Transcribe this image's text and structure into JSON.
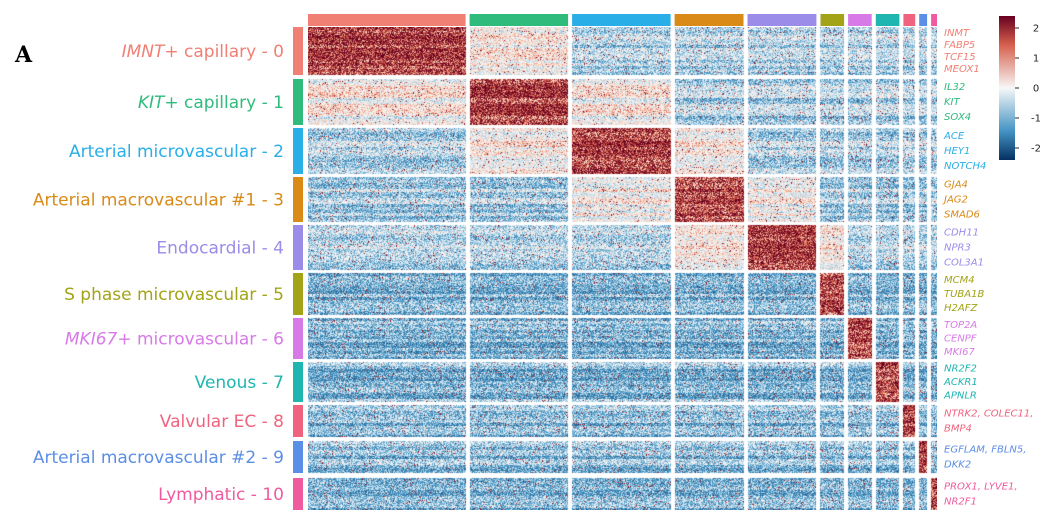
{
  "panel_label": "A",
  "chart_data": {
    "type": "heatmap",
    "clusters": [
      {
        "name_italic": "IMNT",
        "name_rest": "+ capillary",
        "index": "0",
        "color": "#f07f74",
        "genes": [
          "INMT",
          "FABP5",
          "TCF15",
          "MEOX1"
        ]
      },
      {
        "name_italic": "KIT",
        "name_rest": "+ capillary",
        "index": "1",
        "color": "#2fbb7c",
        "genes": [
          "IL32",
          "KIT",
          "SOX4"
        ]
      },
      {
        "name_italic": "",
        "name_rest": "Arterial microvascular",
        "index": "2",
        "color": "#2aaee7",
        "genes": [
          "ACE",
          "HEY1",
          "NOTCH4"
        ]
      },
      {
        "name_italic": "",
        "name_rest": "Arterial macrovascular #1",
        "index": "3",
        "color": "#d98a17",
        "genes": [
          "GJA4",
          "JAG2",
          "SMAD6"
        ]
      },
      {
        "name_italic": "",
        "name_rest": "Endocardial",
        "index": "4",
        "color": "#9a8ce8",
        "genes": [
          "CDH11",
          "NPR3",
          "COL3A1"
        ]
      },
      {
        "name_italic": "",
        "name_rest": "S phase microvascular",
        "index": "5",
        "color": "#a3a317",
        "genes": [
          "MCM4",
          "TUBA1B",
          "H2AFZ"
        ]
      },
      {
        "name_italic": "MKI67",
        "name_rest": "+ microvascular",
        "index": "6",
        "color": "#d77ae8",
        "genes": [
          "TOP2A",
          "CENPF",
          "MKI67"
        ]
      },
      {
        "name_italic": "",
        "name_rest": "Venous",
        "index": "7",
        "color": "#1fb5b0",
        "genes": [
          "NR2F2",
          "ACKR1",
          "APNLR"
        ]
      },
      {
        "name_italic": "",
        "name_rest": "Valvular EC",
        "index": "8",
        "color": "#f0637e",
        "genes": [
          "NTRK2, COLEC11,",
          "BMP4"
        ]
      },
      {
        "name_italic": "",
        "name_rest": "Arterial macrovascular #2",
        "index": "9",
        "color": "#5b8ee6",
        "genes": [
          "EGFLAM, FBLN5,",
          "DKK2"
        ]
      },
      {
        "name_italic": "",
        "name_rest": "Lymphatic",
        "index": "10",
        "color": "#f05a9e",
        "genes": [
          "PROX1, LYVE1,",
          "NR2F1"
        ]
      }
    ],
    "colorbar": {
      "ticks": [
        "2",
        "1",
        "0",
        "-1",
        "-2"
      ],
      "range": [
        -2.4,
        2.4
      ],
      "low_color": "#2166ac",
      "mid_color": "#f7f7f7",
      "high_color": "#b2182b"
    },
    "column_group_relative_widths": [
      160,
      100,
      100,
      70,
      70,
      24,
      24,
      24,
      12,
      8,
      6
    ]
  }
}
